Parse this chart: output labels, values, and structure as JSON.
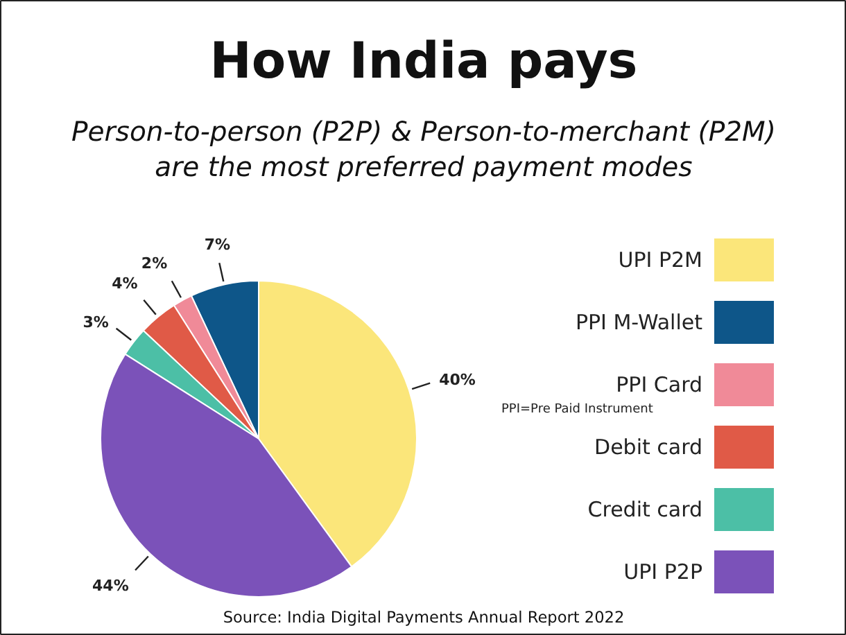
{
  "chart_data": {
    "type": "pie",
    "title": "How India pays",
    "subtitle": "Person-to-person (P2P) & Person-to-merchant (P2M)\nare the most preferred payment modes",
    "categories": [
      "UPI P2M",
      "PPI M-Wallet",
      "PPI Card",
      "Debit card",
      "Credit card",
      "UPI P2P"
    ],
    "values": [
      40,
      7,
      2,
      4,
      3,
      44
    ],
    "colors": [
      "#fbe67a",
      "#0e5689",
      "#f08a98",
      "#e05a47",
      "#4cbfa6",
      "#7b52b9"
    ],
    "value_labels": [
      "40%",
      "7%",
      "2%",
      "4%",
      "3%",
      "44%"
    ],
    "legend": "right",
    "annotations": [
      "PPI=Pre Paid Instrument",
      "Source: India Digital Payments Annual Report 2022"
    ]
  }
}
